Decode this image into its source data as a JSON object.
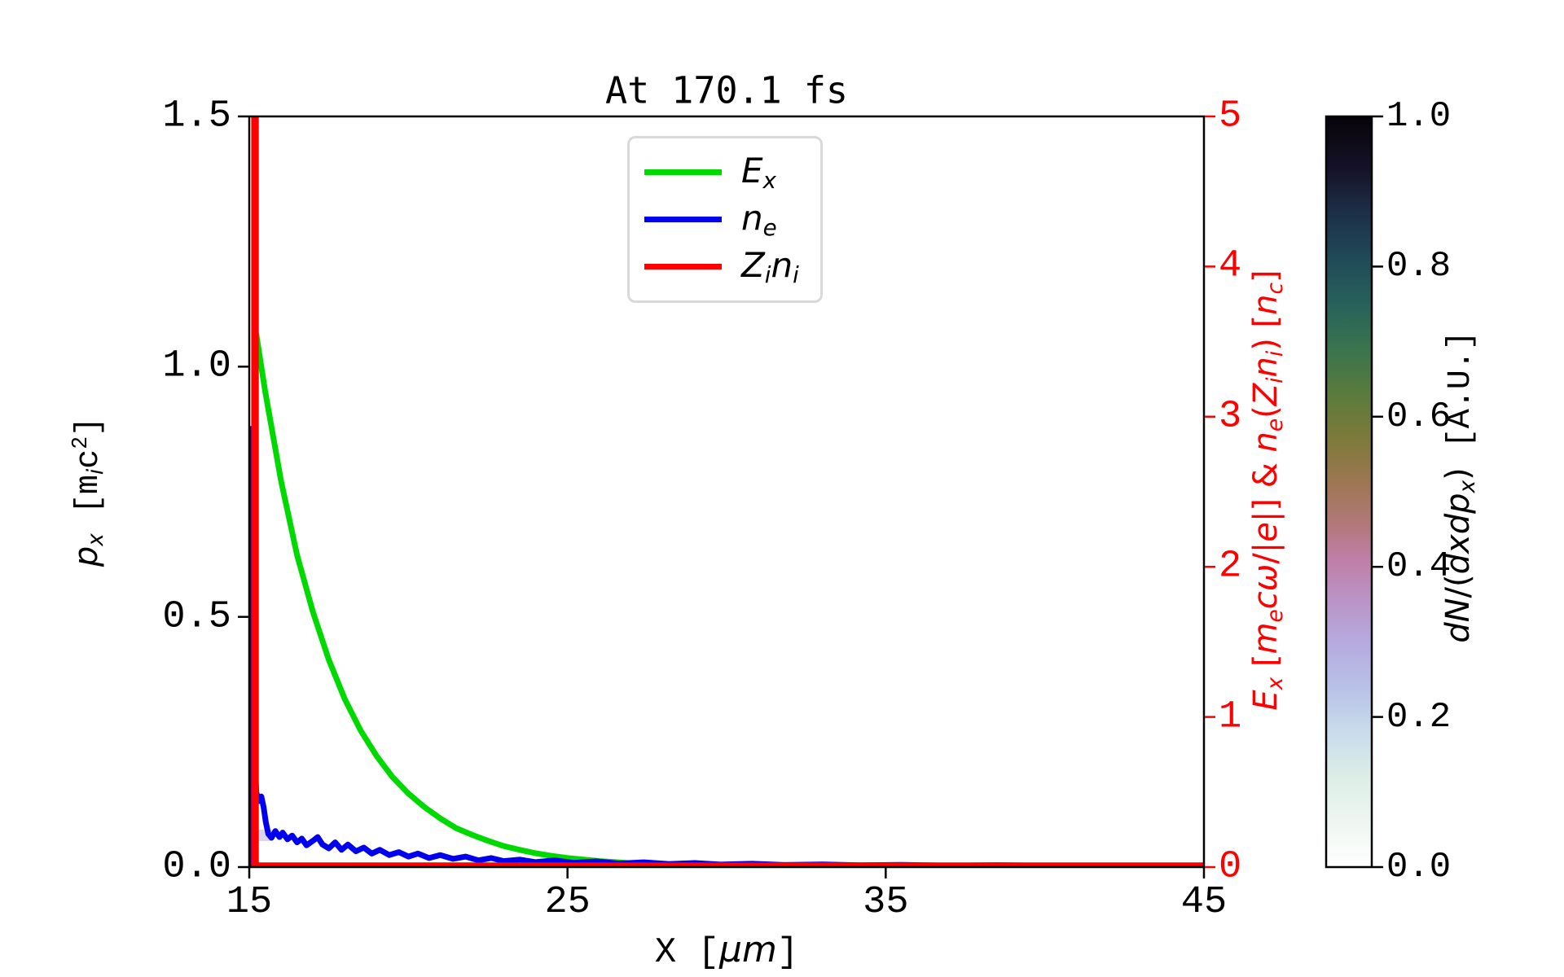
{
  "title": "At 170.1 fs",
  "axes": {
    "x": {
      "ticks": [
        "15",
        "25",
        "35",
        "45"
      ],
      "tick_values": [
        15,
        25,
        35,
        45
      ],
      "range": [
        15,
        45
      ]
    },
    "y_left": {
      "ticks": [
        "0.0",
        "0.5",
        "1.0",
        "1.5"
      ],
      "tick_values": [
        0,
        0.5,
        1,
        1.5
      ],
      "range": [
        0,
        1.5
      ]
    },
    "y_right": {
      "ticks": [
        "0",
        "1",
        "2",
        "3",
        "4",
        "5"
      ],
      "tick_values": [
        0,
        1,
        2,
        3,
        4,
        5
      ],
      "range": [
        0,
        5
      ],
      "color": "#ff0000"
    },
    "colorbar": {
      "ticks": [
        "0.0",
        "0.2",
        "0.4",
        "0.6",
        "0.8",
        "1.0"
      ],
      "tick_values": [
        0,
        0.2,
        0.4,
        0.6,
        0.8,
        1.0
      ],
      "range": [
        0,
        1
      ]
    }
  },
  "labels": {
    "x_axis": [
      [
        "X",
        "m"
      ],
      [
        " [",
        "m"
      ],
      [
        "μ",
        "i"
      ],
      [
        "m",
        "i"
      ],
      [
        "]",
        "m"
      ]
    ],
    "y_left": [
      [
        "p",
        "i"
      ],
      [
        "x",
        "is"
      ],
      [
        " ",
        "m"
      ],
      [
        "[m",
        "m"
      ],
      [
        "i",
        "is"
      ],
      [
        "c",
        "m"
      ],
      [
        "2",
        "mS"
      ],
      [
        "]",
        "m"
      ]
    ],
    "y_right": [
      [
        "E",
        "i"
      ],
      [
        "x",
        "is"
      ],
      [
        " [",
        ""
      ],
      [
        "m",
        "i"
      ],
      [
        "e",
        "is"
      ],
      [
        "c",
        "i"
      ],
      [
        "ω",
        "i"
      ],
      [
        "/|",
        ""
      ],
      [
        "e",
        "i"
      ],
      [
        "|] & ",
        ""
      ],
      [
        "n",
        "i"
      ],
      [
        "e",
        "is"
      ],
      [
        "(",
        ""
      ],
      [
        "Z",
        "i"
      ],
      [
        "i",
        "is"
      ],
      [
        "n",
        "i"
      ],
      [
        "i",
        "is"
      ],
      [
        ") [",
        ""
      ],
      [
        "n",
        "i"
      ],
      [
        "c",
        "is"
      ],
      [
        "]",
        ""
      ]
    ],
    "colorbar": [
      [
        "d",
        "i"
      ],
      [
        "N",
        "i"
      ],
      [
        "/(",
        ""
      ],
      [
        "d",
        "i"
      ],
      [
        "x",
        "i"
      ],
      [
        "d",
        "i"
      ],
      [
        "p",
        "i"
      ],
      [
        "x",
        "is"
      ],
      [
        ")",
        ""
      ],
      [
        " ",
        "m"
      ],
      [
        "[A.U.]",
        "m"
      ]
    ]
  },
  "legend": {
    "items": [
      {
        "id": "Ex",
        "segments": [
          [
            "E",
            "i"
          ],
          [
            "x",
            "is"
          ]
        ],
        "color": "#00d900"
      },
      {
        "id": "ne",
        "segments": [
          [
            "n",
            "i"
          ],
          [
            "e",
            "is"
          ]
        ],
        "color": "#0000ee"
      },
      {
        "id": "Zini",
        "segments": [
          [
            "Z",
            "i"
          ],
          [
            "i",
            "is"
          ],
          [
            "n",
            "i"
          ],
          [
            "i",
            "is"
          ]
        ],
        "color": "#ff0000"
      }
    ]
  },
  "chart_data": {
    "type": "line",
    "title": "At 170.1 fs",
    "x_label": "X [μm]",
    "x_range": [
      15,
      45
    ],
    "y_left_label": "p_x [m_i c^2]",
    "y_left_range": [
      0,
      1.5
    ],
    "y_right_label": "E_x [m_e c ω/|e|] & n_e(Z_i n_i) [n_c]",
    "y_right_range": [
      0,
      5
    ],
    "grid": false,
    "legend_position": "upper center",
    "series": [
      {
        "id": "Ex",
        "name": "E_x",
        "axis": "right",
        "color": "#00d900",
        "linewidth": 7,
        "points": [
          [
            15.07,
            0.02
          ],
          [
            15.1,
            1.2
          ],
          [
            15.14,
            2.5
          ],
          [
            15.22,
            3.55
          ],
          [
            15.5,
            3.17
          ],
          [
            16.0,
            2.57
          ],
          [
            16.5,
            2.08
          ],
          [
            17.0,
            1.7
          ],
          [
            17.5,
            1.38
          ],
          [
            18.0,
            1.12
          ],
          [
            18.5,
            0.91
          ],
          [
            19.0,
            0.74
          ],
          [
            19.5,
            0.6
          ],
          [
            20.0,
            0.49
          ],
          [
            20.5,
            0.4
          ],
          [
            21.0,
            0.325
          ],
          [
            21.5,
            0.26
          ],
          [
            22.0,
            0.215
          ],
          [
            22.5,
            0.175
          ],
          [
            23.0,
            0.14
          ],
          [
            23.5,
            0.115
          ],
          [
            24.0,
            0.092
          ],
          [
            24.5,
            0.075
          ],
          [
            25.0,
            0.061
          ],
          [
            26.0,
            0.04
          ],
          [
            27.0,
            0.026
          ],
          [
            28.0,
            0.017
          ],
          [
            29.0,
            0.011
          ],
          [
            30.0,
            0.0075
          ],
          [
            32.0,
            0.004
          ],
          [
            35.0,
            0.002
          ],
          [
            40.0,
            0.001
          ],
          [
            45.0,
            0.001
          ]
        ]
      },
      {
        "id": "ne",
        "name": "n_e",
        "axis": "right",
        "color": "#0000ee",
        "linewidth": 7,
        "points": [
          [
            15.03,
            0.02
          ],
          [
            15.05,
            1.5
          ],
          [
            15.07,
            2.92
          ],
          [
            15.1,
            2.9
          ],
          [
            15.13,
            1.6
          ],
          [
            15.17,
            0.75
          ],
          [
            15.22,
            0.5
          ],
          [
            15.3,
            0.44
          ],
          [
            15.38,
            0.47
          ],
          [
            15.45,
            0.4
          ],
          [
            15.52,
            0.3
          ],
          [
            15.6,
            0.22
          ],
          [
            15.7,
            0.195
          ],
          [
            15.82,
            0.24
          ],
          [
            15.95,
            0.2
          ],
          [
            16.05,
            0.23
          ],
          [
            16.2,
            0.185
          ],
          [
            16.35,
            0.21
          ],
          [
            16.5,
            0.165
          ],
          [
            16.65,
            0.19
          ],
          [
            16.8,
            0.145
          ],
          [
            17.0,
            0.175
          ],
          [
            17.15,
            0.2
          ],
          [
            17.3,
            0.15
          ],
          [
            17.5,
            0.125
          ],
          [
            17.7,
            0.165
          ],
          [
            17.9,
            0.115
          ],
          [
            18.1,
            0.15
          ],
          [
            18.35,
            0.105
          ],
          [
            18.6,
            0.13
          ],
          [
            18.85,
            0.09
          ],
          [
            19.1,
            0.115
          ],
          [
            19.4,
            0.08
          ],
          [
            19.7,
            0.1
          ],
          [
            20.0,
            0.07
          ],
          [
            20.3,
            0.09
          ],
          [
            20.65,
            0.06
          ],
          [
            21.0,
            0.08
          ],
          [
            21.4,
            0.055
          ],
          [
            21.8,
            0.07
          ],
          [
            22.2,
            0.045
          ],
          [
            22.6,
            0.06
          ],
          [
            23.0,
            0.04
          ],
          [
            23.5,
            0.05
          ],
          [
            24.0,
            0.033
          ],
          [
            24.6,
            0.045
          ],
          [
            25.2,
            0.028
          ],
          [
            25.9,
            0.038
          ],
          [
            26.6,
            0.024
          ],
          [
            27.4,
            0.032
          ],
          [
            28.2,
            0.02
          ],
          [
            29.0,
            0.027
          ],
          [
            29.8,
            0.017
          ],
          [
            30.8,
            0.022
          ],
          [
            31.8,
            0.014
          ],
          [
            33.0,
            0.018
          ],
          [
            34.2,
            0.012
          ],
          [
            35.5,
            0.015
          ],
          [
            37.0,
            0.01
          ],
          [
            38.5,
            0.013
          ],
          [
            40.0,
            0.009
          ],
          [
            41.5,
            0.011
          ],
          [
            43.0,
            0.008
          ],
          [
            45.0,
            0.01
          ]
        ]
      },
      {
        "id": "Zini",
        "name": "Z_i n_i",
        "axis": "right",
        "color": "#ff0000",
        "linewidth": 7,
        "points": [
          [
            15.15,
            0.0
          ],
          [
            15.15,
            5.4
          ],
          [
            15.21,
            5.4
          ],
          [
            15.21,
            0.012
          ],
          [
            45.0,
            0.012
          ]
        ]
      }
    ],
    "histogram": {
      "label": "dN/(dxdp_x) [A.U.]",
      "value_range": [
        0,
        1
      ],
      "cells": [
        {
          "x": [
            15.0,
            15.28
          ],
          "p": [
            0.0,
            0.052
          ],
          "value": 1.0,
          "color": "#0c0b10"
        },
        {
          "x": [
            15.0,
            15.3
          ],
          "p": [
            0.052,
            0.075
          ],
          "value": 0.27,
          "color": "#b5abdc"
        },
        {
          "x": [
            15.3,
            15.72
          ],
          "p": [
            0.052,
            0.075
          ],
          "value": 0.12,
          "color": "#d9d6ee"
        }
      ]
    },
    "colorbar": {
      "ticks": [
        0,
        0.2,
        0.4,
        0.6,
        0.8,
        1.0
      ],
      "gradient_stops": [
        [
          0,
          "#ffffff"
        ],
        [
          6,
          "#eef6f1"
        ],
        [
          12,
          "#ddeee7"
        ],
        [
          18,
          "#c8dcea"
        ],
        [
          24,
          "#b8c1e7"
        ],
        [
          30,
          "#b6aade"
        ],
        [
          36,
          "#ba92c4"
        ],
        [
          41,
          "#c07ea8"
        ],
        [
          46,
          "#b07877"
        ],
        [
          51,
          "#9e7754"
        ],
        [
          57,
          "#7e7a3a"
        ],
        [
          63,
          "#5a7b3c"
        ],
        [
          69,
          "#3a744e"
        ],
        [
          75,
          "#27615a"
        ],
        [
          81,
          "#204a58"
        ],
        [
          87,
          "#1c3048"
        ],
        [
          93,
          "#161228"
        ],
        [
          100,
          "#060409"
        ]
      ]
    }
  }
}
